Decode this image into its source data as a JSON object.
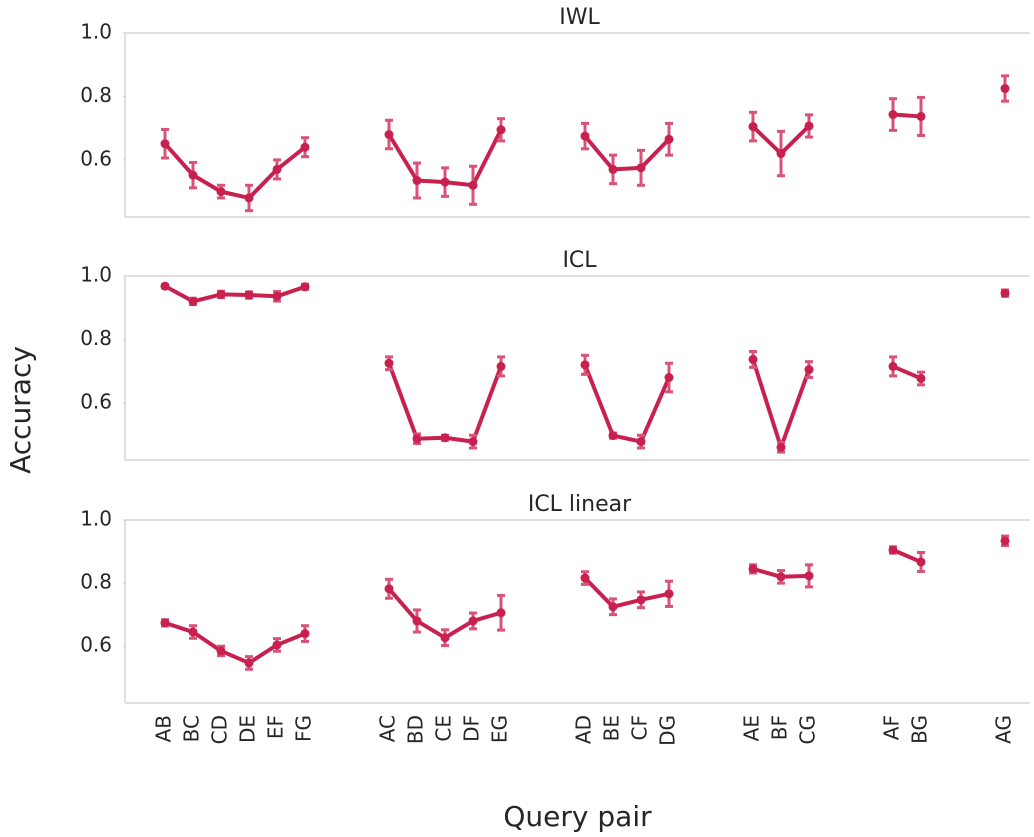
{
  "chart_data": [
    {
      "type": "line",
      "title": "IWL",
      "color": "#c8204f",
      "values": [
        0.651,
        0.552,
        0.5,
        0.48,
        0.57,
        0.64,
        null,
        null,
        0.68,
        0.535,
        0.53,
        0.52,
        0.695,
        null,
        null,
        0.675,
        0.57,
        0.575,
        0.665,
        null,
        null,
        0.705,
        0.62,
        0.707,
        null,
        null,
        0.743,
        0.737,
        null,
        null,
        0.825
      ],
      "errors": [
        0.045,
        0.04,
        0.02,
        0.04,
        0.03,
        0.03,
        null,
        null,
        0.045,
        0.055,
        0.045,
        0.06,
        0.035,
        null,
        null,
        0.04,
        0.045,
        0.055,
        0.05,
        null,
        null,
        0.045,
        0.07,
        0.035,
        null,
        null,
        0.05,
        0.06,
        null,
        null,
        0.04
      ],
      "ylim": [
        0.42,
        1.0
      ],
      "yticks": [
        0.6,
        0.8,
        {
          "value": 1.0,
          "label": "1.0"
        }
      ]
    },
    {
      "type": "line",
      "title": "ICL",
      "color": "#c8204f",
      "ylabel": "Accuracy",
      "values": [
        0.968,
        0.92,
        0.942,
        0.94,
        0.936,
        0.966,
        null,
        null,
        0.725,
        0.487,
        0.49,
        0.478,
        0.715,
        null,
        null,
        0.72,
        0.497,
        0.478,
        0.68,
        null,
        null,
        0.737,
        0.46,
        0.705,
        null,
        null,
        0.715,
        0.677,
        null,
        null,
        0.946
      ],
      "errors": [
        0.005,
        0.01,
        0.01,
        0.01,
        0.015,
        0.008,
        null,
        null,
        0.02,
        0.015,
        0.008,
        0.02,
        0.03,
        null,
        null,
        0.03,
        0.008,
        0.02,
        0.045,
        null,
        null,
        0.025,
        0.015,
        0.025,
        null,
        null,
        0.03,
        0.02,
        null,
        null,
        0.01
      ],
      "ylim": [
        0.42,
        1.0
      ],
      "yticks": [
        0.6,
        0.8,
        {
          "value": 1.0,
          "label": "1.0"
        }
      ]
    },
    {
      "type": "line",
      "title": "ICL linear",
      "color": "#c8204f",
      "xlabel": "Query pair",
      "categories": [
        "AB",
        "BC",
        "CD",
        "DE",
        "EF",
        "FG",
        null,
        null,
        "AC",
        "BD",
        "CE",
        "DF",
        "EG",
        null,
        null,
        "AD",
        "BE",
        "CF",
        "DG",
        null,
        null,
        "AE",
        "BF",
        "CG",
        null,
        null,
        "AF",
        "BG",
        null,
        null,
        "AG"
      ],
      "values": [
        0.674,
        0.645,
        0.585,
        0.547,
        0.604,
        0.64,
        null,
        null,
        0.782,
        0.68,
        0.627,
        0.68,
        0.706,
        null,
        null,
        0.816,
        0.725,
        0.747,
        0.766,
        null,
        null,
        0.845,
        0.82,
        0.823,
        null,
        null,
        0.905,
        0.867,
        null,
        null,
        0.934
      ],
      "errors": [
        0.01,
        0.02,
        0.015,
        0.02,
        0.02,
        0.025,
        null,
        null,
        0.03,
        0.035,
        0.025,
        0.025,
        0.055,
        null,
        null,
        0.02,
        0.025,
        0.025,
        0.04,
        null,
        null,
        0.013,
        0.02,
        0.035,
        null,
        null,
        0.01,
        0.03,
        null,
        null,
        0.015
      ],
      "ylim": [
        0.42,
        1.0
      ],
      "yticks": [
        0.6,
        0.8,
        {
          "value": 1.0,
          "label": "1.0"
        }
      ]
    }
  ]
}
